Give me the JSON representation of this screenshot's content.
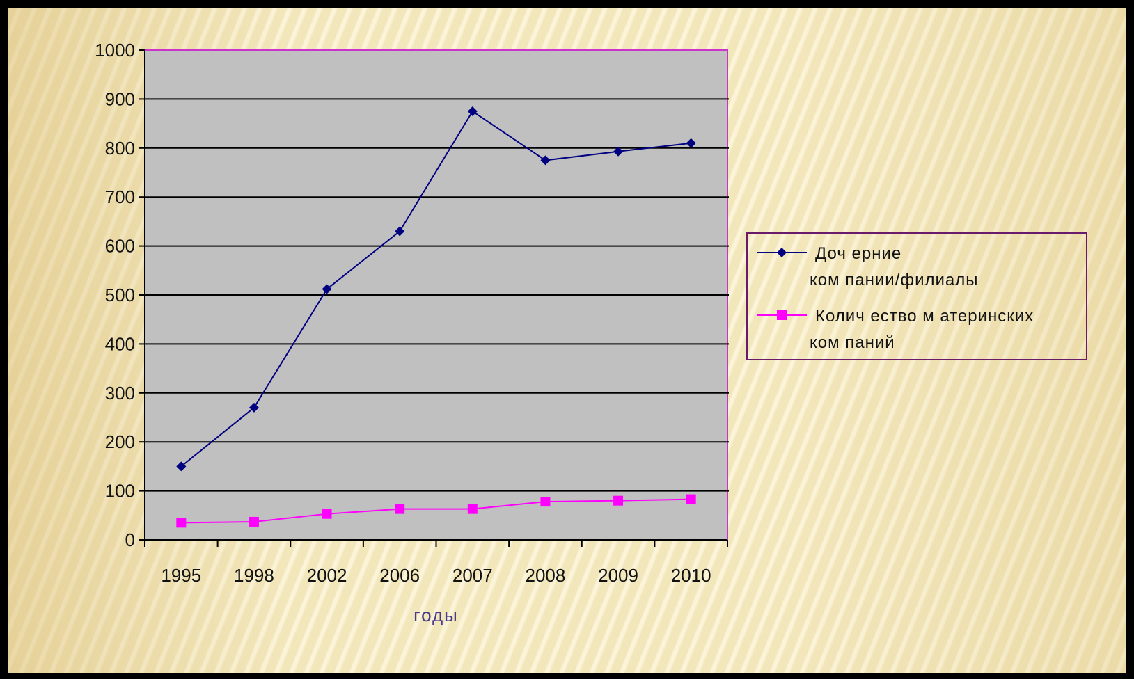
{
  "chart_data": {
    "type": "line",
    "categories": [
      "1995",
      "1998",
      "2002",
      "2006",
      "2007",
      "2008",
      "2009",
      "2010"
    ],
    "series": [
      {
        "name_lines": [
          "Доч ерние",
          "ком пании/филиалы"
        ],
        "color": "#000080",
        "marker": "diamond",
        "values": [
          150,
          270,
          512,
          630,
          875,
          775,
          793,
          810
        ]
      },
      {
        "name_lines": [
          "Колич ество  м атеринских",
          "ком паний"
        ],
        "color": "#ff00ff",
        "marker": "square",
        "values": [
          35,
          37,
          53,
          63,
          63,
          78,
          80,
          83
        ]
      }
    ],
    "xlabel": "годы",
    "ylabel": "",
    "ylim": [
      0,
      1000
    ],
    "yticks": [
      "0",
      "100",
      "200",
      "300",
      "400",
      "500",
      "600",
      "700",
      "800",
      "900",
      "1000"
    ],
    "grid": true,
    "legend_position": "right",
    "plot_background": "#c0c0c0",
    "plot_border_color": "#cc33cc"
  }
}
